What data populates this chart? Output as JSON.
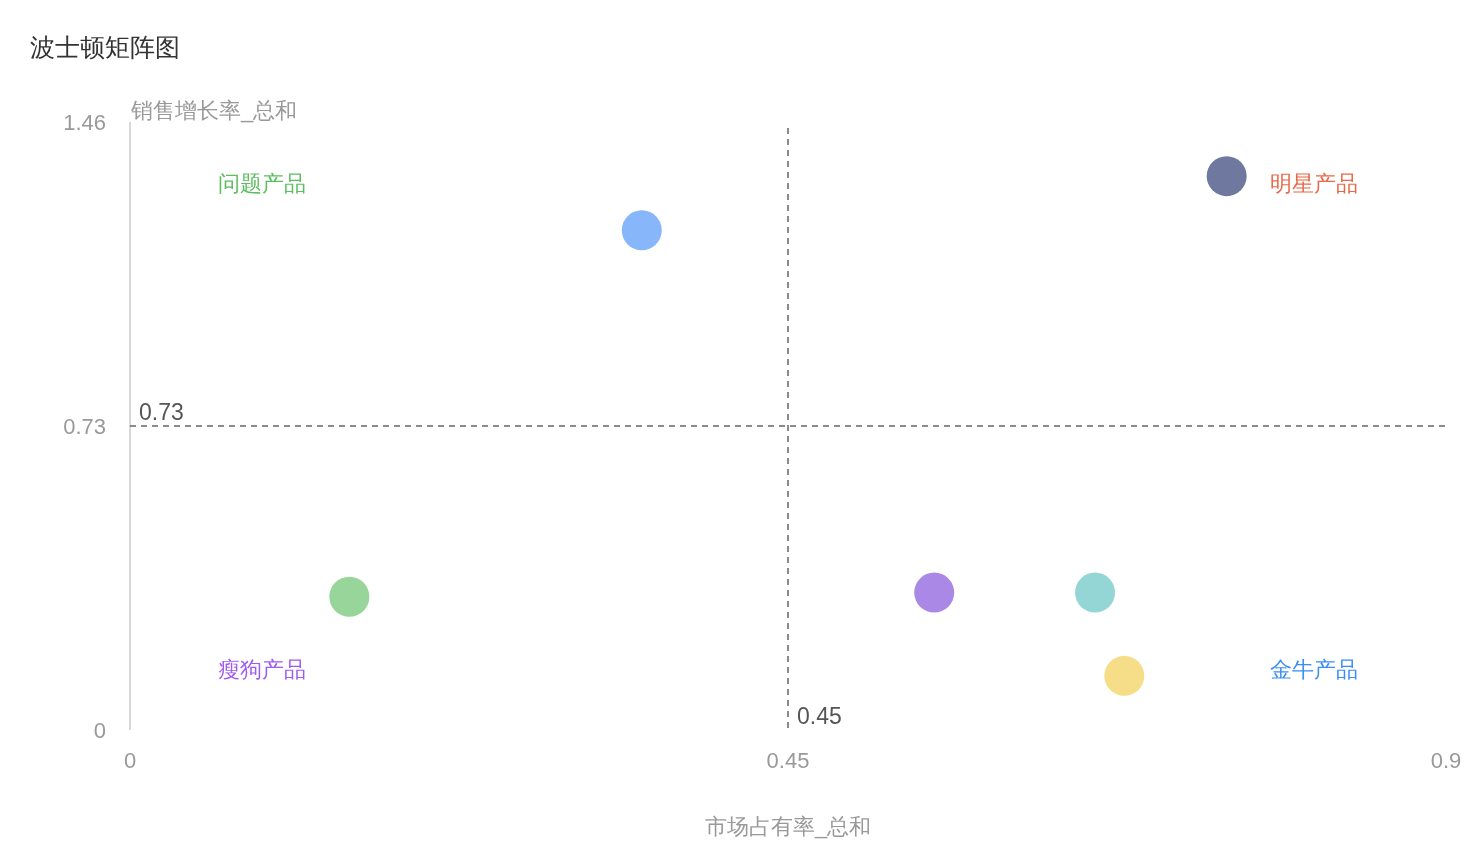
{
  "chart_data": {
    "type": "scatter",
    "title": "波士顿矩阵图",
    "xlabel": "市场占有率_总和",
    "ylabel": "销售增长率_总和",
    "x": [
      0.35,
      0.75,
      0.15,
      0.55,
      0.66,
      0.68
    ],
    "values": [
      1.2,
      1.33,
      0.32,
      0.33,
      0.33,
      0.13
    ],
    "colors": [
      "#87b6fb",
      "#6f79a0",
      "#98d59b",
      "#a988e6",
      "#94d5d5",
      "#f6de88"
    ],
    "marker": "circle",
    "xlim": [
      0,
      0.9
    ],
    "ylim": [
      0,
      1.46
    ],
    "xticks": [
      0,
      0.45,
      0.9
    ],
    "yticks": [
      0,
      0.73,
      1.46
    ],
    "ref_lines": [
      {
        "axis": "x",
        "value": 0.45,
        "label": "0.45",
        "color": "#666666",
        "line_style": "dashed"
      },
      {
        "axis": "y",
        "value": 0.73,
        "label": "0.73",
        "color": "#666666",
        "line_style": "dashed"
      }
    ],
    "annotations": [
      "问题产品",
      "明星产品",
      "瘦狗产品",
      "金牛产品"
    ]
  }
}
